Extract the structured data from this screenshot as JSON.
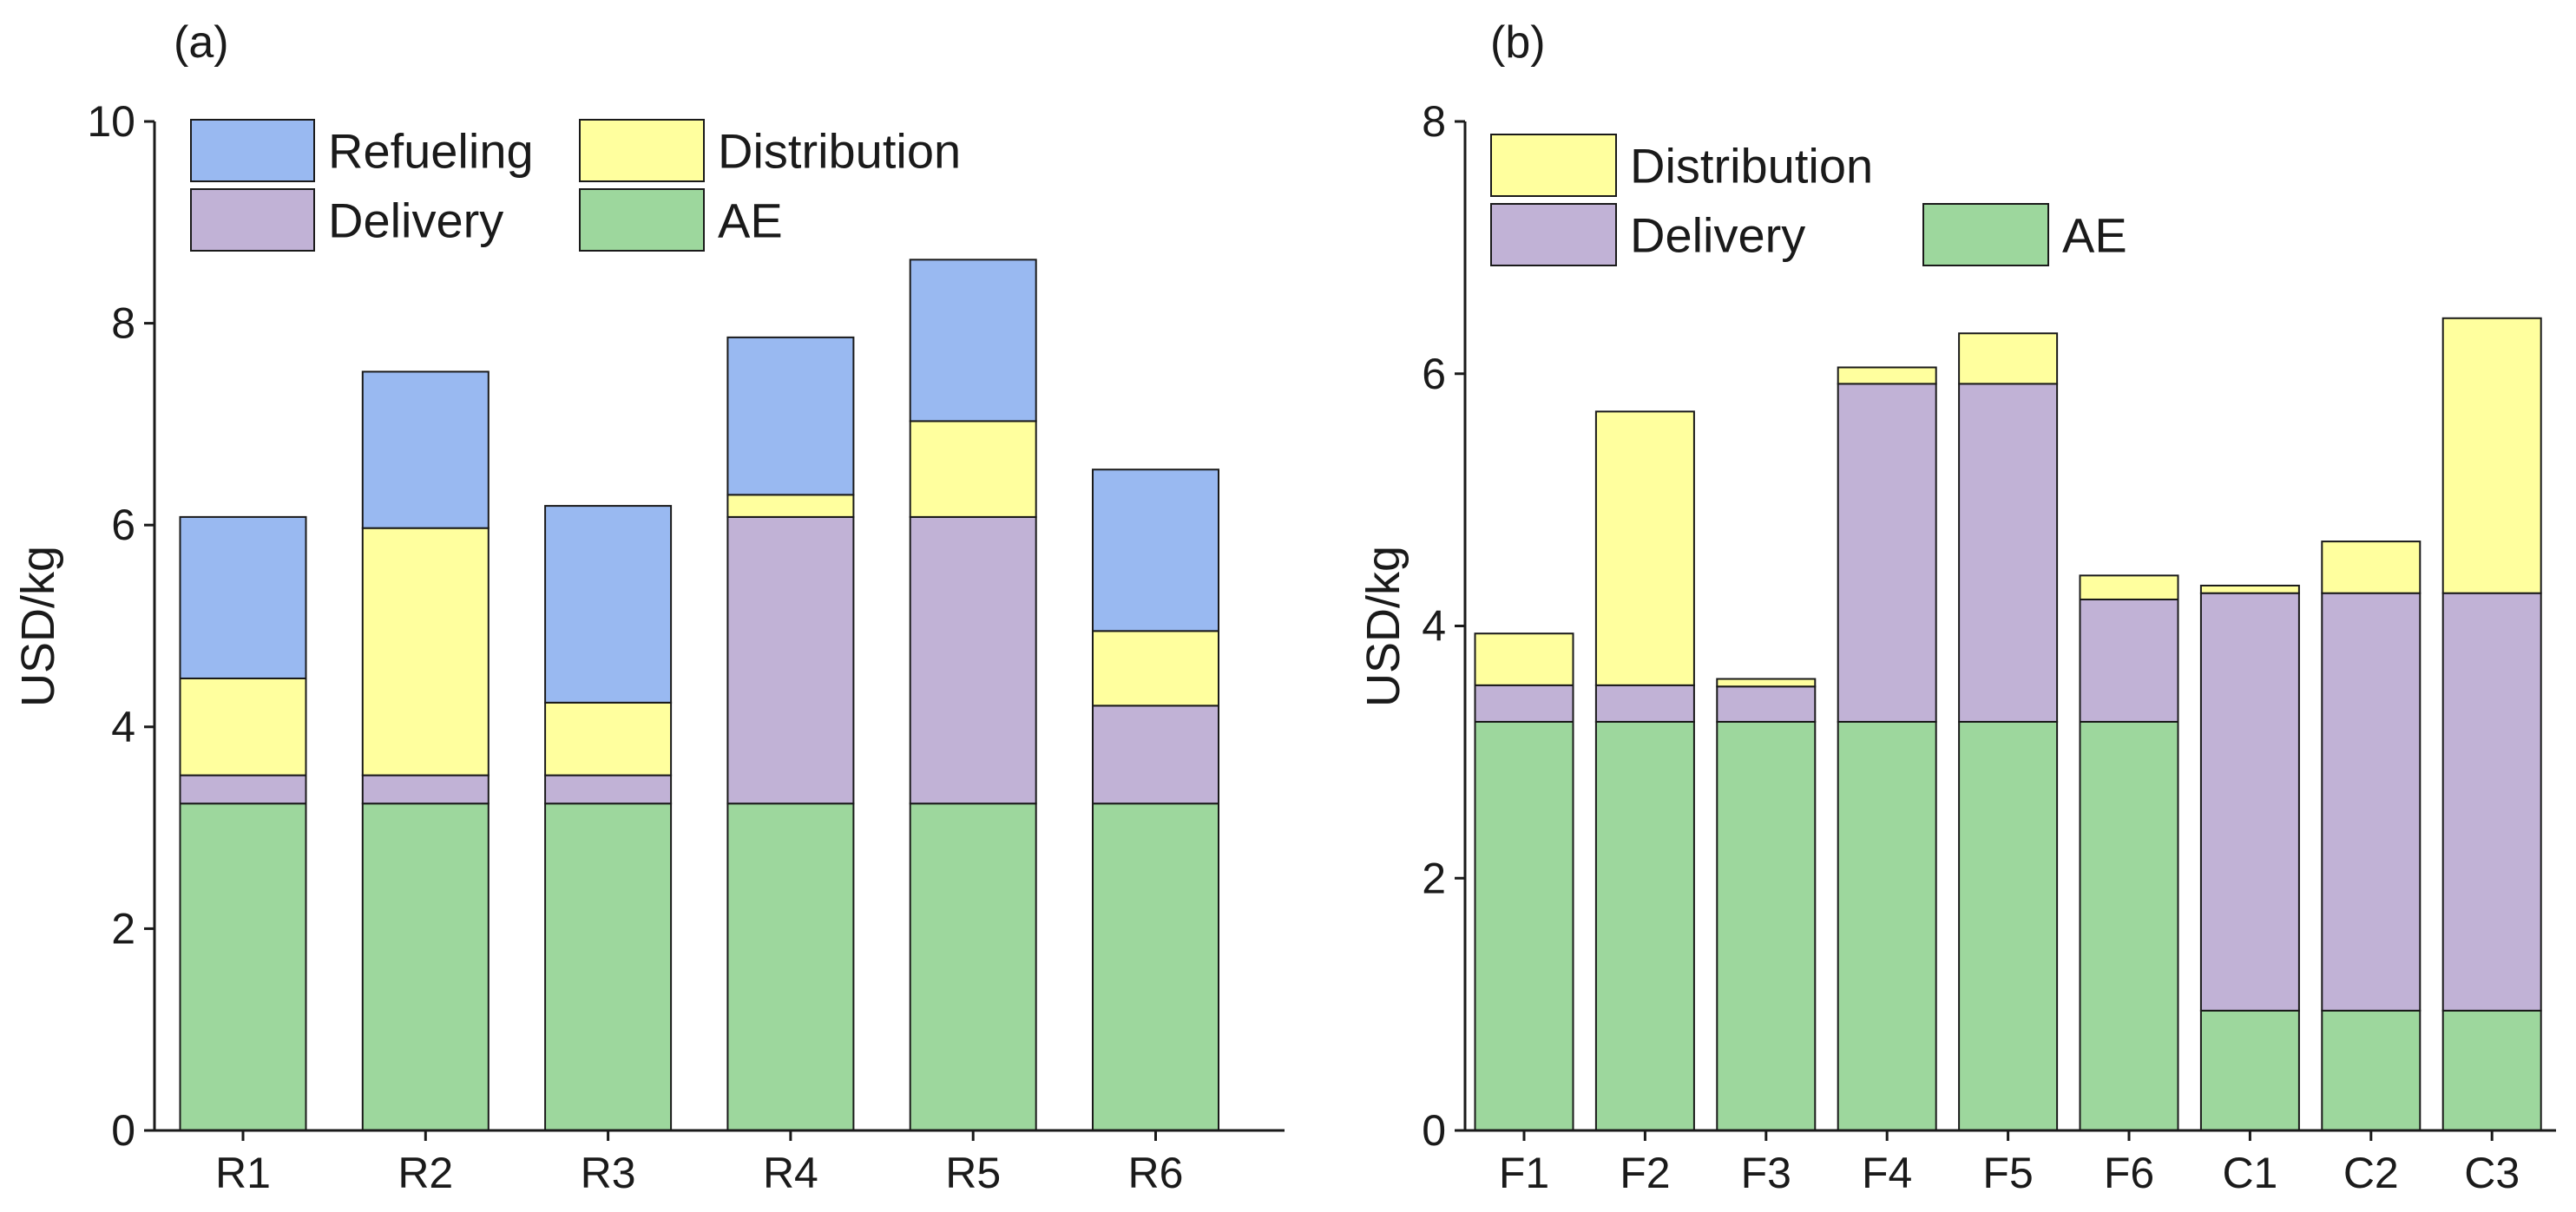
{
  "colors": {
    "Refueling": "#99b9f1",
    "Distribution": "#ffff9e",
    "Delivery": "#c1b2d6",
    "AE": "#9dd79d",
    "axis": "#1a1a1a"
  },
  "chart_data": [
    {
      "type": "bar",
      "stacked": true,
      "panel_label": "(a)",
      "title": "",
      "xlabel": "",
      "ylabel": "USD/kg",
      "ylim": [
        0,
        10
      ],
      "yticks": [
        0,
        2,
        4,
        6,
        8,
        10
      ],
      "categories": [
        "R1",
        "R2",
        "R3",
        "R4",
        "R5",
        "R6"
      ],
      "series": [
        {
          "name": "AE",
          "values": [
            3.24,
            3.24,
            3.24,
            3.24,
            3.24,
            3.24
          ]
        },
        {
          "name": "Delivery",
          "values": [
            0.28,
            0.28,
            0.28,
            2.84,
            2.84,
            0.97
          ]
        },
        {
          "name": "Distribution",
          "values": [
            0.96,
            2.45,
            0.72,
            0.22,
            0.95,
            0.74
          ]
        },
        {
          "name": "Refueling",
          "values": [
            1.6,
            1.55,
            1.95,
            1.56,
            1.6,
            1.6
          ]
        }
      ],
      "legend": [
        {
          "name": "Refueling"
        },
        {
          "name": "Distribution"
        },
        {
          "name": "Delivery"
        },
        {
          "name": "AE"
        }
      ],
      "legend_position": "top-left"
    },
    {
      "type": "bar",
      "stacked": true,
      "panel_label": "(b)",
      "title": "",
      "xlabel": "",
      "ylabel": "USD/kg",
      "ylim": [
        0,
        8
      ],
      "yticks": [
        0,
        2,
        4,
        6,
        8
      ],
      "categories": [
        "F1",
        "F2",
        "F3",
        "F4",
        "F5",
        "F6",
        "C1",
        "C2",
        "C3"
      ],
      "series": [
        {
          "name": "AE",
          "values": [
            3.24,
            3.24,
            3.24,
            3.24,
            3.24,
            3.24,
            0.95,
            0.95,
            0.95
          ]
        },
        {
          "name": "Delivery",
          "values": [
            0.29,
            0.29,
            0.28,
            2.68,
            2.68,
            0.97,
            3.31,
            3.31,
            3.31
          ]
        },
        {
          "name": "Distribution",
          "values": [
            0.41,
            2.17,
            0.06,
            0.13,
            0.4,
            0.19,
            0.06,
            0.41,
            2.18
          ]
        }
      ],
      "legend": [
        {
          "name": "Distribution"
        },
        {
          "name": "Delivery"
        },
        {
          "name": "AE"
        }
      ],
      "legend_position": "top-left"
    }
  ]
}
